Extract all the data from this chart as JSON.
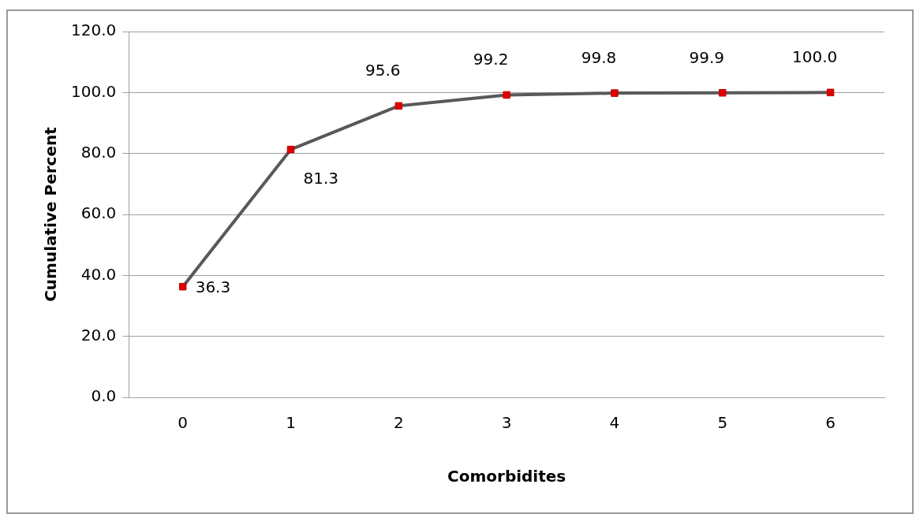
{
  "chart_data": {
    "type": "line",
    "xlabel": "Comorbidites",
    "ylabel": "Cumulative Percent",
    "categories": [
      "0",
      "1",
      "2",
      "3",
      "4",
      "5",
      "6"
    ],
    "series": [
      {
        "color": "#595959",
        "values": [
          36.3,
          81.3,
          95.6,
          99.2,
          99.8,
          99.9,
          100.0
        ],
        "value_labels": [
          "36.3",
          "81.3",
          "95.6",
          "99.2",
          "99.8",
          "99.9",
          "100.0"
        ]
      }
    ],
    "ylim": [
      0,
      120
    ],
    "yticks": [
      {
        "value": 0,
        "label": "0.0"
      },
      {
        "value": 20,
        "label": "20.0"
      },
      {
        "value": 40,
        "label": "40.0"
      },
      {
        "value": 60,
        "label": "60.0"
      },
      {
        "value": 80,
        "label": "80.0"
      },
      {
        "value": 100,
        "label": "100.0"
      },
      {
        "value": 120,
        "label": "120.0"
      }
    ],
    "grid": "y",
    "legend": false,
    "marker": "square",
    "line_style": "solid"
  }
}
